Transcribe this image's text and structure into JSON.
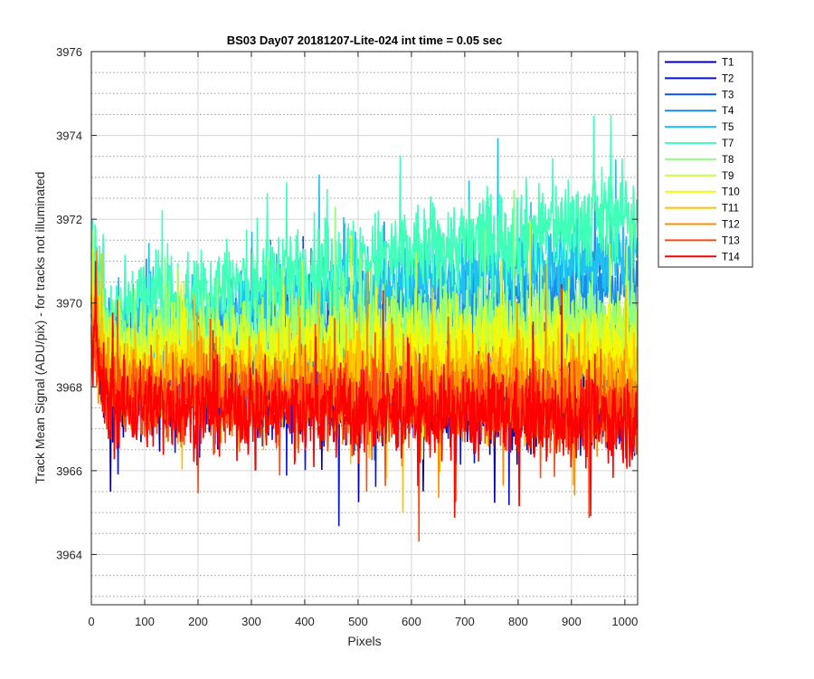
{
  "chart_data": {
    "type": "line",
    "title": "BS03 Day07 20181207-Lite-024 int time = 0.05 sec",
    "xlabel": "Pixels",
    "ylabel": "Track Mean Signal (ADU/pix) - for tracks not illuminated",
    "xlim": [
      0,
      1024
    ],
    "ylim": [
      3962.8,
      3976
    ],
    "xticks": [
      0,
      100,
      200,
      300,
      400,
      500,
      600,
      700,
      800,
      900,
      1000
    ],
    "yticks": [
      3964,
      3966,
      3968,
      3970,
      3972,
      3974,
      3976
    ],
    "grid": true,
    "minor_grid": true,
    "legend_position": "outside-top-right",
    "series": [
      {
        "name": "T1",
        "color": "#0000a8",
        "mean_start": 3968.0,
        "mean_end": 3967.4,
        "noise": 1.0
      },
      {
        "name": "T2",
        "color": "#0a14d8",
        "mean_start": 3968.2,
        "mean_end": 3967.6,
        "noise": 1.0
      },
      {
        "name": "T3",
        "color": "#0d4fe0",
        "mean_start": 3968.6,
        "mean_end": 3968.8,
        "noise": 1.0
      },
      {
        "name": "T4",
        "color": "#1a8be8",
        "mean_start": 3969.0,
        "mean_end": 3970.5,
        "noise": 1.0
      },
      {
        "name": "T5",
        "color": "#20c0f0",
        "mean_start": 3969.4,
        "mean_end": 3971.2,
        "noise": 1.0
      },
      {
        "name": "T7",
        "color": "#40ffb8",
        "mean_start": 3969.8,
        "mean_end": 3972.2,
        "noise": 1.1
      },
      {
        "name": "T8",
        "color": "#90ff80",
        "mean_start": 3969.2,
        "mean_end": 3969.6,
        "noise": 1.0
      },
      {
        "name": "T9",
        "color": "#c8ff38",
        "mean_start": 3968.9,
        "mean_end": 3969.2,
        "noise": 1.0
      },
      {
        "name": "T10",
        "color": "#f8f800",
        "mean_start": 3968.6,
        "mean_end": 3968.8,
        "noise": 1.0
      },
      {
        "name": "T11",
        "color": "#ffc000",
        "mean_start": 3968.3,
        "mean_end": 3968.2,
        "noise": 1.0
      },
      {
        "name": "T12",
        "color": "#ff8c00",
        "mean_start": 3968.0,
        "mean_end": 3967.7,
        "noise": 1.0
      },
      {
        "name": "T13",
        "color": "#ff4a10",
        "mean_start": 3967.8,
        "mean_end": 3967.4,
        "noise": 1.0
      },
      {
        "name": "T14",
        "color": "#ff0000",
        "mean_start": 3967.6,
        "mean_end": 3967.2,
        "noise": 1.0
      }
    ]
  }
}
